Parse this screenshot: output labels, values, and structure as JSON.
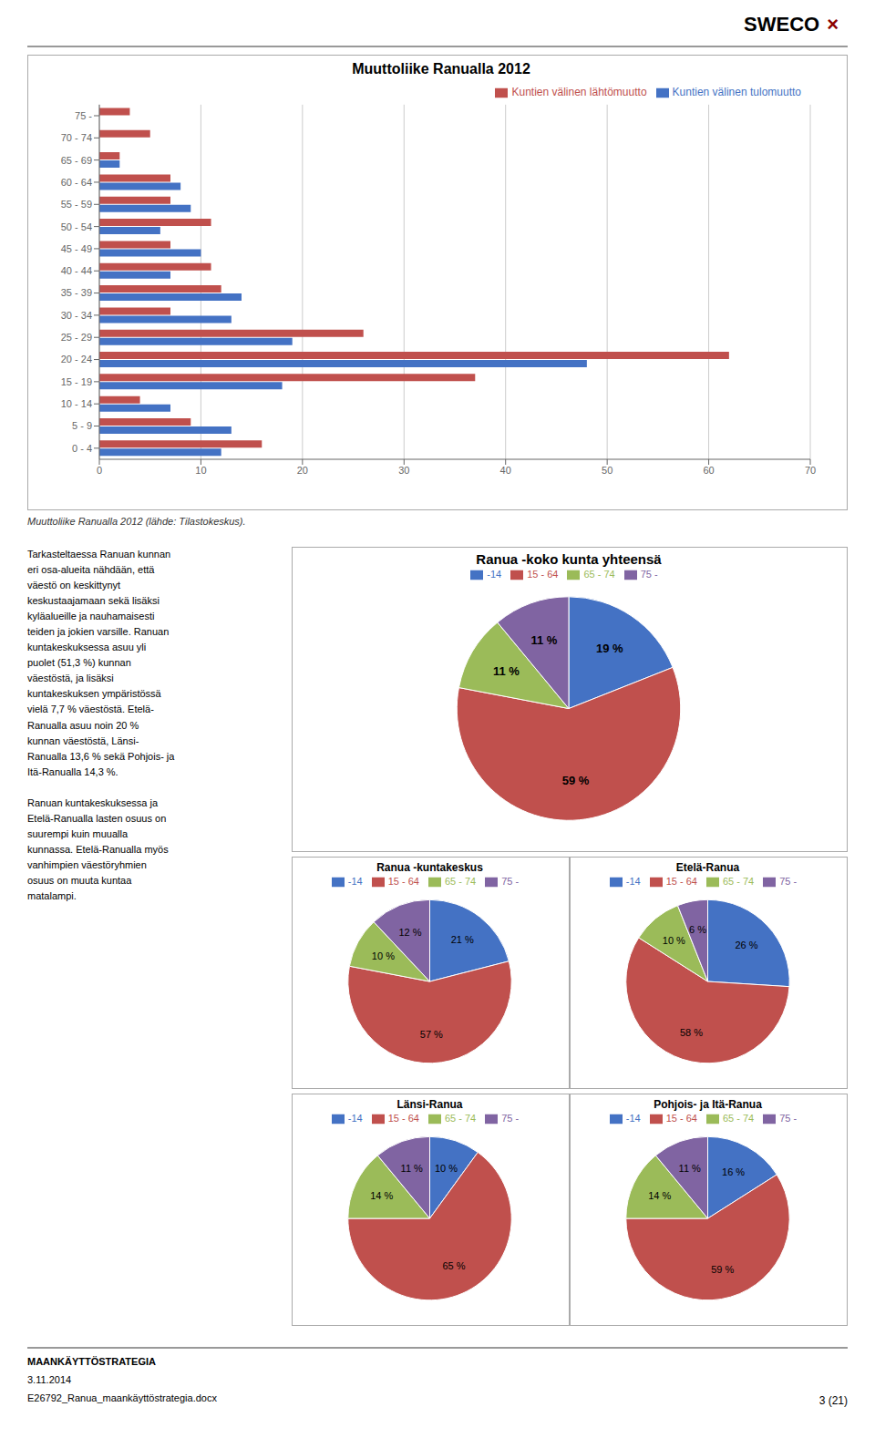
{
  "chart_data": [
    {
      "type": "bar",
      "title": "Muuttoliike Ranualla 2012",
      "orientation": "horizontal",
      "categories": [
        "0 - 4",
        "5 - 9",
        "10 - 14",
        "15 - 19",
        "20 - 24",
        "25 - 29",
        "30 - 34",
        "35 - 39",
        "40 - 44",
        "45 - 49",
        "50 - 54",
        "55 - 59",
        "60 - 64",
        "65 - 69",
        "70 - 74",
        "75 -"
      ],
      "series": [
        {
          "name": "Kuntien välinen lähtömuutto",
          "color": "#C0504D",
          "values": [
            16,
            9,
            4,
            37,
            62,
            26,
            7,
            12,
            11,
            7,
            11,
            7,
            7,
            2,
            5,
            3
          ]
        },
        {
          "name": "Kuntien välinen tulomuutto",
          "color": "#4472C4",
          "values": [
            12,
            13,
            7,
            18,
            48,
            19,
            13,
            14,
            7,
            10,
            6,
            9,
            8,
            2,
            0,
            0
          ]
        }
      ],
      "xlim": [
        0,
        70
      ],
      "xticks": [
        0,
        10,
        20,
        30,
        40,
        50,
        60,
        70
      ],
      "grid": true,
      "legend": "upper right",
      "annotations": [
        "Muuttoliike Ranualla 2012 (lähde: Tilastokeskus).",
        "Tarkasteltaessa Ranuan kunnan\neri osa-alueita nähdään, että\nväestö on keskittynyt\nkeskustaajamaan sekä lisäksi\nkyläalueille ja nauhamaisesti\nteiden ja jokien varsille. Ranuan\nkuntakeskuksessa asuu yli\npuolet (51,3 %) kunnan\nväestöstä, ja lisäksi\nkuntakeskuksen ympäristössä\nvielä 7,7 % väestöstä. Etelä-\nRanualla asuu noin 20 %\nkunnan väestöstä, Länsi-\nRanualla 13,6 % sekä Pohjois- ja\nItä-Ranualla 14,3 %.\n\nRanuan kuntakeskuksessa ja\nEtelä-Ranualla lasten osuus on\nsuurempi kuin muualla\nkunnassa. Etelä-Ranualla myös\nvanhimpien väestöryhmien\nosuus on muuta kuntaa\nmatalampi.",
        "SWECO",
        "×",
        "MAANKÄYTTÖSTRATEGIA",
        "3.11.2014",
        "E26792_Ranua_maankäyttöstrategia.docx",
        "3 (21)"
      ]
    },
    {
      "type": "pie",
      "title": "Ranua -koko kunta yhteensä",
      "categories": [
        "-14",
        "15 - 64",
        "65 - 74",
        "75 -"
      ],
      "values": [
        19,
        59,
        11,
        11
      ],
      "value_labels": [
        "19 %",
        "59 %",
        "11 %",
        "11 %"
      ],
      "colors": [
        "#4472C4",
        "#C0504D",
        "#9BBB59",
        "#8064A2"
      ],
      "data_labels": true,
      "legend": "top"
    },
    {
      "type": "pie",
      "title": "Ranua -kuntakeskus",
      "categories": [
        "-14",
        "15 - 64",
        "65 - 74",
        "75 -"
      ],
      "values": [
        21,
        57,
        10,
        12
      ],
      "value_labels": [
        "21 %",
        "57 %",
        "10 %",
        "12 %"
      ],
      "colors": [
        "#4472C4",
        "#C0504D",
        "#9BBB59",
        "#8064A2"
      ],
      "data_labels": true,
      "legend": "top"
    },
    {
      "type": "pie",
      "title": "Etelä-Ranua",
      "categories": [
        "-14",
        "15 - 64",
        "65 - 74",
        "75 -"
      ],
      "values": [
        26,
        58,
        10,
        6
      ],
      "value_labels": [
        "26 %",
        "58 %",
        "10 %",
        "6 %"
      ],
      "colors": [
        "#4472C4",
        "#C0504D",
        "#9BBB59",
        "#8064A2"
      ],
      "data_labels": true,
      "legend": "top"
    },
    {
      "type": "pie",
      "title": "Länsi-Ranua",
      "categories": [
        "-14",
        "15 - 64",
        "65 - 74",
        "75 -"
      ],
      "values": [
        10,
        65,
        14,
        11
      ],
      "value_labels": [
        "10 %",
        "65 %",
        "14 %",
        "11 %"
      ],
      "colors": [
        "#4472C4",
        "#C0504D",
        "#9BBB59",
        "#8064A2"
      ],
      "data_labels": true,
      "legend": "top"
    },
    {
      "type": "pie",
      "title": "Pohjois- ja Itä-Ranua",
      "categories": [
        "-14",
        "15 - 64",
        "65 - 74",
        "75 -"
      ],
      "values": [
        16,
        59,
        14,
        11
      ],
      "value_labels": [
        "16 %",
        "59 %",
        "14 %",
        "11 %"
      ],
      "colors": [
        "#4472C4",
        "#C0504D",
        "#9BBB59",
        "#8064A2"
      ],
      "data_labels": true,
      "legend": "top"
    }
  ]
}
